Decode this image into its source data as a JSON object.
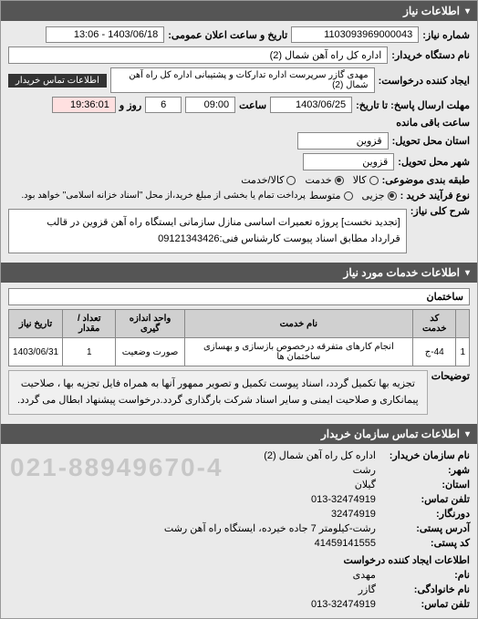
{
  "sections": {
    "info": {
      "title": "اطلاعات نیاز"
    },
    "service": {
      "title": "اطلاعات خدمات مورد نیاز"
    },
    "contact": {
      "title": "اطلاعات تماس سازمان خریدار"
    }
  },
  "fields": {
    "request_no_lbl": "شماره نیاز:",
    "request_no": "1103093969000043",
    "announce_date_lbl": "تاریخ و ساعت اعلان عمومی:",
    "announce_date": "1403/06/18 - 13:06",
    "buyer_org_lbl": "نام دستگاه خریدار:",
    "buyer_org": "اداره کل راه آهن شمال (2)",
    "requester_lbl": "ایجاد کننده درخواست:",
    "requester": "مهدی گازر سرپرست اداره تدارکات و پشتیبانی اداره کل راه آهن شمال (2)",
    "contact_btn": "اطلاعات تماس خریدار",
    "deadline_lbl": "مهلت ارسال پاسخ: تا تاریخ:",
    "deadline_date": "1403/06/25",
    "deadline_time_lbl": "ساعت",
    "deadline_time": "09:00",
    "day_lbl": "روز و",
    "day_val": "6",
    "remain_time": "19:36:01",
    "remain_lbl": "ساعت باقی مانده",
    "delivery_province_lbl": "استان محل تحویل:",
    "delivery_province": "قزوین",
    "delivery_city_lbl": "شهر محل تحویل:",
    "delivery_city": "قزوین",
    "budget_type_lbl": "طبقه بندی موضوعی:",
    "budget_opts": {
      "goods": "کالا",
      "service": "خدمت",
      "both": "کالا/خدمت"
    },
    "process_type_lbl": "نوع فرآیند خرید :",
    "process_opts": {
      "small": "جزیی",
      "medium": "متوسط"
    },
    "process_note": "پرداخت تمام یا بخشی از مبلغ خرید،از محل \"اسناد خزانه اسلامی\" خواهد بود.",
    "summary_lbl": "شرح کلی نیاز:",
    "summary": "[تجدید نخست] پروژه تعمیرات اساسی منازل سازمانی ایستگاه راه آهن قزوین در قالب قرارداد مطابق اسناد پیوست کارشناس فنی:09121343426",
    "service_category": "ساختمان",
    "explain_lbl": "توضیحات",
    "explain": "تجزیه بها تکمیل گردد، اسناد پیوست تکمیل و تصویر ممهور آنها به همراه فایل تجزیه بها ، صلاحیت پیمانکاری و صلاحیت ایمنی و سایر اسناد شرکت بارگذاری گردد.درخواست پیشنهاد ابطال می گردد."
  },
  "service_table": {
    "cols": [
      "",
      "کد خدمت",
      "نام خدمت",
      "واحد اندازه گیری",
      "تعداد / مقدار",
      "تاریخ نیاز"
    ],
    "rows": [
      [
        "1",
        "44-ج",
        "انجام کارهای متفرقه درخصوص بازسازی و بهسازی ساختمان ها",
        "صورت وضعیت",
        "1",
        "1403/06/31"
      ]
    ]
  },
  "contact": {
    "org_lbl": "نام سازمان خریدار:",
    "org": "اداره کل راه آهن شمال (2)",
    "city_lbl": "شهر:",
    "city": "رشت",
    "province_lbl": "استان:",
    "province": "گیلان",
    "phone_lbl": "تلفن تماس:",
    "phone": "013-32474919",
    "fax_lbl": "دورنگار:",
    "fax": "32474919",
    "postal_addr_lbl": "آدرس پستی:",
    "postal_addr": "رشت-کیلومتر 7 جاده خیرده، ایستگاه راه آهن رشت",
    "postal_code_lbl": "کد پستی:",
    "postal_code": "41459141555",
    "creator_section_lbl": "اطلاعات ایجاد کننده درخواست",
    "name_lbl": "نام:",
    "name": "مهدی",
    "family_lbl": "نام خانوادگی:",
    "family": "گازر",
    "creator_phone_lbl": "تلفن تماس:",
    "creator_phone": "013-32474919",
    "watermark": "021-88949670-4"
  },
  "colors": {
    "header_bg": "#555555",
    "header_fg": "#ffffff",
    "box_border": "#888888",
    "btn_bg": "#333333"
  }
}
